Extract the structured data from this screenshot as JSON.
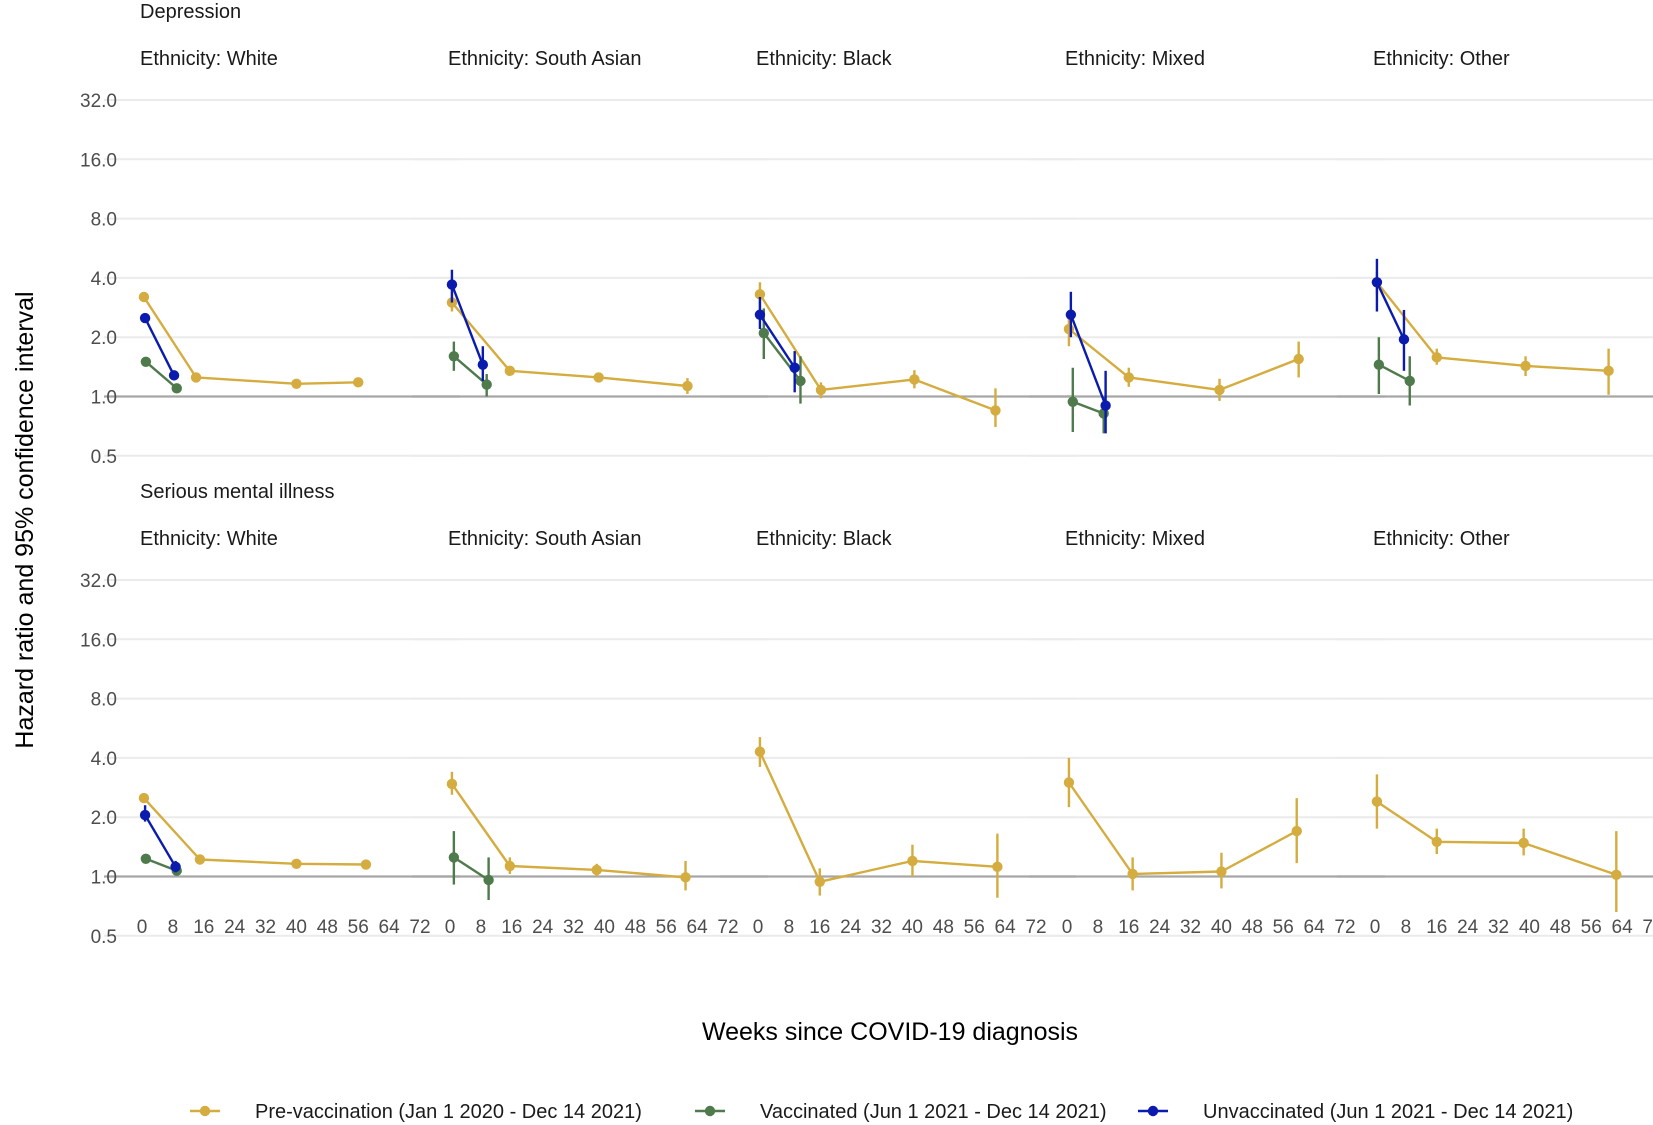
{
  "colors": {
    "Pre-vaccination": "#D4AC3F",
    "Vaccinated": "#4E7A4C",
    "Unvaccinated": "#0B1BAD"
  },
  "chart_data": {
    "type": "scatter",
    "subtype": "point-range faceted (log2 y-scale)",
    "xlabel": "Weeks since COVID-19 diagnosis",
    "ylabel": "Hazard ratio and 95% confidence interval",
    "x_ticks": [
      "0",
      "8",
      "16",
      "24",
      "32",
      "40",
      "48",
      "56",
      "64",
      "72"
    ],
    "xlim": [
      0,
      72
    ],
    "y_ticks": [
      "0.5",
      "1.0",
      "2.0",
      "4.0",
      "8.0",
      "16.0",
      "32.0"
    ],
    "ylim": [
      0.5,
      32
    ],
    "y_scale": "log2",
    "reference_line": 1.0,
    "grid": true,
    "legend_position": "bottom",
    "legend": [
      {
        "key": "Pre-vaccination",
        "label": "Pre-vaccination (Jan 1 2020 - Dec 14 2021)"
      },
      {
        "key": "Vaccinated",
        "label": "Vaccinated (Jun 1 2021 - Dec 14 2021)"
      },
      {
        "key": "Unvaccinated",
        "label": "Unvaccinated (Jun 1 2021 - Dec 14 2021)"
      }
    ],
    "rows": [
      {
        "title": "Depression",
        "panels": [
          {
            "label": "Ethnicity: White",
            "series": [
              {
                "key": "Pre-vaccination",
                "points": [
                  [
                    0.5,
                    3.2,
                    3.2,
                    3.2
                  ],
                  [
                    14,
                    1.25,
                    1.25,
                    1.25
                  ],
                  [
                    40,
                    1.16,
                    1.16,
                    1.16
                  ],
                  [
                    56,
                    1.18,
                    1.18,
                    1.18
                  ]
                ]
              },
              {
                "key": "Vaccinated",
                "points": [
                  [
                    1,
                    1.5,
                    1.5,
                    1.5
                  ],
                  [
                    9,
                    1.1,
                    1.1,
                    1.1
                  ]
                ]
              },
              {
                "key": "Unvaccinated",
                "points": [
                  [
                    0.8,
                    2.5,
                    2.5,
                    2.5
                  ],
                  [
                    8.3,
                    1.28,
                    1.28,
                    1.28
                  ]
                ]
              }
            ]
          },
          {
            "label": "Ethnicity: South Asian",
            "series": [
              {
                "key": "Pre-vaccination",
                "points": [
                  [
                    0.5,
                    3.0,
                    2.7,
                    3.4
                  ],
                  [
                    15.5,
                    1.35,
                    1.3,
                    1.42
                  ],
                  [
                    38.5,
                    1.25,
                    1.22,
                    1.3
                  ],
                  [
                    61.5,
                    1.13,
                    1.03,
                    1.24
                  ]
                ]
              },
              {
                "key": "Vaccinated",
                "points": [
                  [
                    1,
                    1.6,
                    1.35,
                    1.9
                  ],
                  [
                    9.5,
                    1.15,
                    1.0,
                    1.3
                  ]
                ]
              },
              {
                "key": "Unvaccinated",
                "points": [
                  [
                    0.5,
                    3.7,
                    3.0,
                    4.4
                  ],
                  [
                    8.5,
                    1.45,
                    1.2,
                    1.8
                  ]
                ]
              }
            ]
          },
          {
            "label": "Ethnicity: Black",
            "series": [
              {
                "key": "Pre-vaccination",
                "points": [
                  [
                    0.5,
                    3.3,
                    2.8,
                    3.8
                  ],
                  [
                    16.3,
                    1.08,
                    0.98,
                    1.18
                  ],
                  [
                    40.5,
                    1.22,
                    1.1,
                    1.36
                  ],
                  [
                    61.5,
                    0.85,
                    0.7,
                    1.1
                  ]
                ]
              },
              {
                "key": "Vaccinated",
                "points": [
                  [
                    1.5,
                    2.1,
                    1.55,
                    2.8
                  ],
                  [
                    11,
                    1.2,
                    0.92,
                    1.6
                  ]
                ]
              },
              {
                "key": "Unvaccinated",
                "points": [
                  [
                    0.5,
                    2.6,
                    2.2,
                    3.2
                  ],
                  [
                    9.5,
                    1.4,
                    1.05,
                    1.7
                  ]
                ]
              }
            ]
          },
          {
            "label": "Ethnicity: Mixed",
            "series": [
              {
                "key": "Pre-vaccination",
                "points": [
                  [
                    0.5,
                    2.2,
                    1.8,
                    2.6
                  ],
                  [
                    16,
                    1.25,
                    1.12,
                    1.4
                  ],
                  [
                    39.5,
                    1.08,
                    0.95,
                    1.23
                  ],
                  [
                    60,
                    1.55,
                    1.25,
                    1.9
                  ]
                ]
              },
              {
                "key": "Vaccinated",
                "points": [
                  [
                    1.5,
                    0.94,
                    0.66,
                    1.4
                  ],
                  [
                    9.5,
                    0.82,
                    0.65,
                    1.0
                  ]
                ]
              },
              {
                "key": "Unvaccinated",
                "points": [
                  [
                    1,
                    2.6,
                    2.0,
                    3.4
                  ],
                  [
                    10,
                    0.9,
                    0.65,
                    1.35
                  ]
                ]
              }
            ]
          },
          {
            "label": "Ethnicity: Other",
            "series": [
              {
                "key": "Pre-vaccination",
                "points": [
                  [
                    0.5,
                    3.8,
                    3.3,
                    4.3
                  ],
                  [
                    16,
                    1.58,
                    1.45,
                    1.75
                  ],
                  [
                    39,
                    1.43,
                    1.27,
                    1.6
                  ],
                  [
                    60.5,
                    1.35,
                    1.02,
                    1.75
                  ]
                ]
              },
              {
                "key": "Vaccinated",
                "points": [
                  [
                    1,
                    1.45,
                    1.03,
                    2.0
                  ],
                  [
                    9,
                    1.2,
                    0.9,
                    1.6
                  ]
                ]
              },
              {
                "key": "Unvaccinated",
                "points": [
                  [
                    0.5,
                    3.8,
                    2.7,
                    5.0
                  ],
                  [
                    7.5,
                    1.95,
                    1.35,
                    2.75
                  ]
                ]
              }
            ]
          }
        ]
      },
      {
        "title": "Serious mental illness",
        "panels": [
          {
            "label": "Ethnicity: White",
            "series": [
              {
                "key": "Pre-vaccination",
                "points": [
                  [
                    0.5,
                    2.5,
                    2.5,
                    2.5
                  ],
                  [
                    15,
                    1.22,
                    1.22,
                    1.22
                  ],
                  [
                    40,
                    1.16,
                    1.16,
                    1.16
                  ],
                  [
                    58,
                    1.15,
                    1.15,
                    1.15
                  ]
                ]
              },
              {
                "key": "Vaccinated",
                "points": [
                  [
                    1,
                    1.23,
                    1.23,
                    1.23
                  ],
                  [
                    9,
                    1.07,
                    1.07,
                    1.07
                  ]
                ]
              },
              {
                "key": "Unvaccinated",
                "points": [
                  [
                    0.8,
                    2.05,
                    1.9,
                    2.3
                  ],
                  [
                    8.7,
                    1.12,
                    1.05,
                    1.2
                  ]
                ]
              }
            ]
          },
          {
            "label": "Ethnicity: South Asian",
            "series": [
              {
                "key": "Pre-vaccination",
                "points": [
                  [
                    0.5,
                    2.95,
                    2.6,
                    3.4
                  ],
                  [
                    15.5,
                    1.13,
                    1.03,
                    1.25
                  ],
                  [
                    38,
                    1.08,
                    1.0,
                    1.16
                  ],
                  [
                    61,
                    0.99,
                    0.85,
                    1.2
                  ]
                ]
              },
              {
                "key": "Vaccinated",
                "points": [
                  [
                    1,
                    1.25,
                    0.91,
                    1.7
                  ],
                  [
                    10,
                    0.96,
                    0.76,
                    1.25
                  ]
                ]
              }
            ]
          },
          {
            "label": "Ethnicity: Black",
            "series": [
              {
                "key": "Pre-vaccination",
                "points": [
                  [
                    0.5,
                    4.3,
                    3.6,
                    5.1
                  ],
                  [
                    16,
                    0.94,
                    0.8,
                    1.1
                  ],
                  [
                    40,
                    1.2,
                    1.0,
                    1.45
                  ],
                  [
                    62,
                    1.12,
                    0.78,
                    1.65
                  ]
                ]
              }
            ]
          },
          {
            "label": "Ethnicity: Mixed",
            "series": [
              {
                "key": "Pre-vaccination",
                "points": [
                  [
                    0.5,
                    3.0,
                    2.25,
                    4.0
                  ],
                  [
                    17,
                    1.03,
                    0.85,
                    1.25
                  ],
                  [
                    40,
                    1.06,
                    0.87,
                    1.32
                  ],
                  [
                    59.5,
                    1.7,
                    1.17,
                    2.5
                  ]
                ]
              }
            ]
          },
          {
            "label": "Ethnicity: Other",
            "series": [
              {
                "key": "Pre-vaccination",
                "points": [
                  [
                    0.5,
                    2.4,
                    1.75,
                    3.3
                  ],
                  [
                    16,
                    1.5,
                    1.3,
                    1.75
                  ],
                  [
                    38.5,
                    1.48,
                    1.28,
                    1.75
                  ],
                  [
                    62.5,
                    1.02,
                    0.66,
                    1.7
                  ]
                ]
              }
            ]
          }
        ]
      }
    ]
  }
}
